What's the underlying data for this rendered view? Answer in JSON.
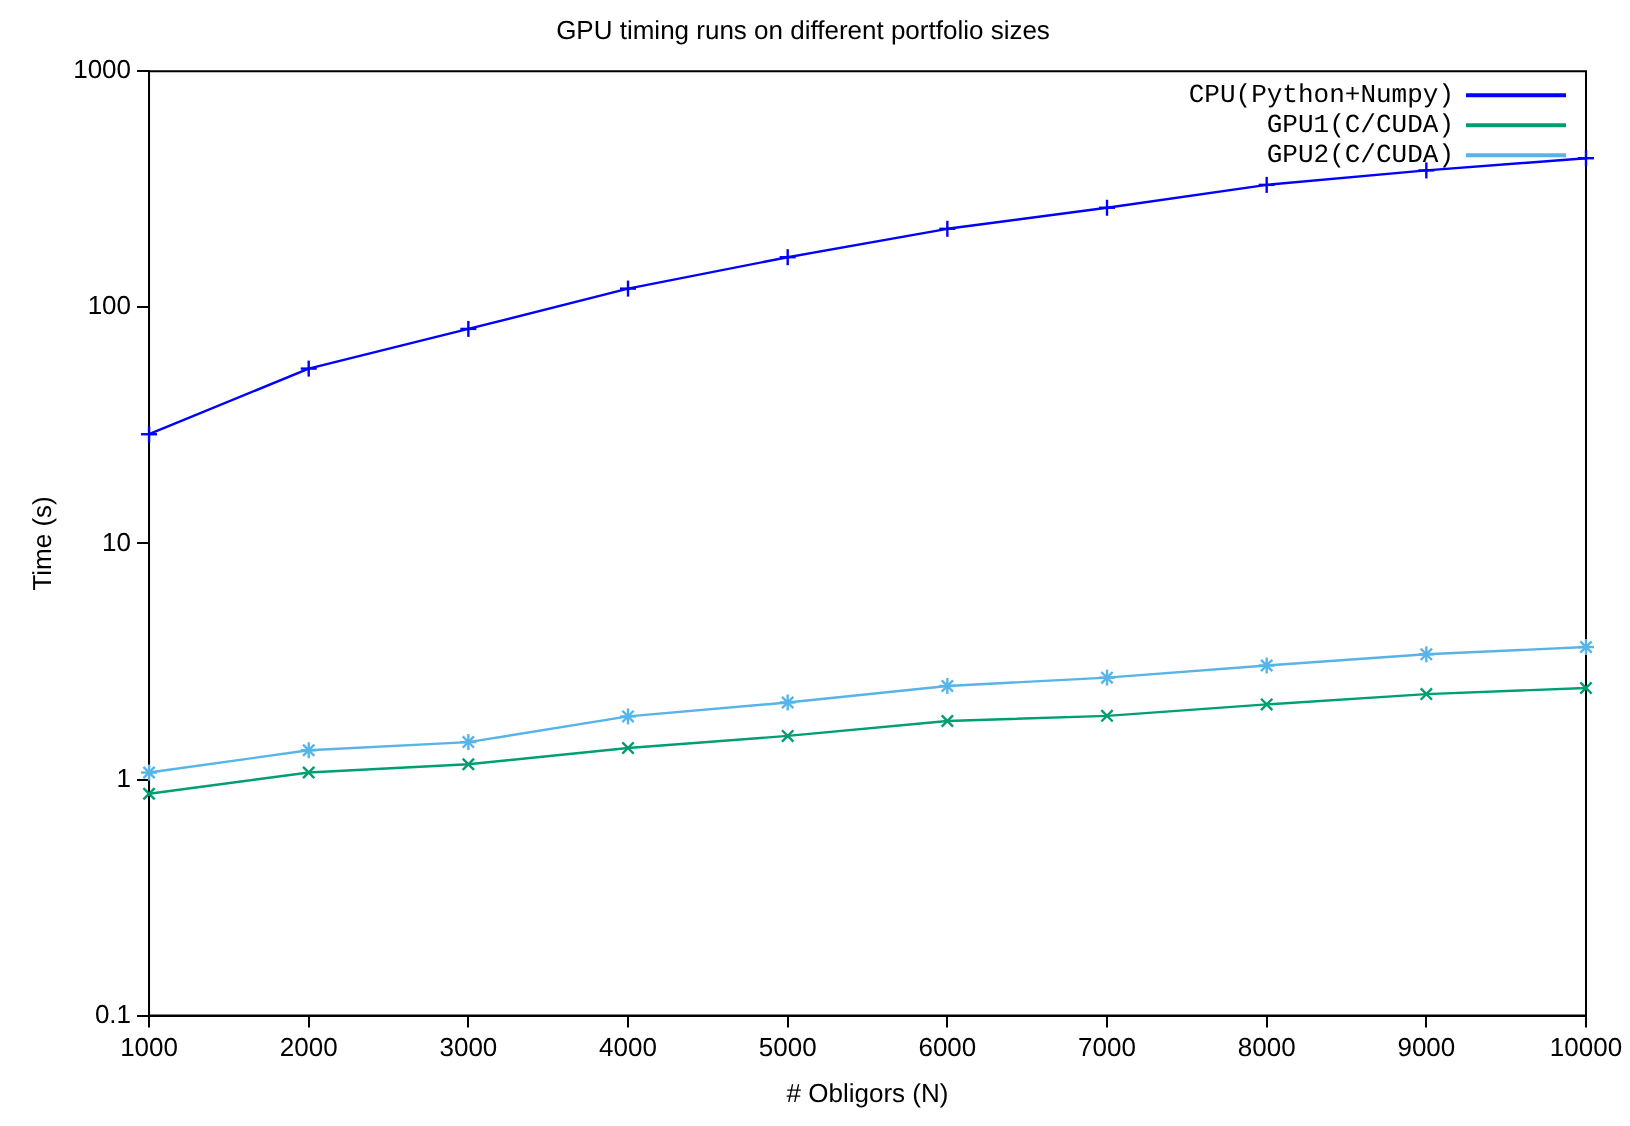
{
  "chart_data": {
    "type": "line",
    "title": "GPU timing runs on different portfolio sizes",
    "xlabel": "# Obligors (N)",
    "ylabel": "Time (s)",
    "x": [
      1000,
      2000,
      3000,
      4000,
      5000,
      6000,
      7000,
      8000,
      9000,
      10000
    ],
    "series": [
      {
        "name": "CPU(Python+Numpy)",
        "color": "#0000ff",
        "marker": "cross",
        "values": [
          29,
          55,
          81,
          120,
          163,
          215,
          264,
          330,
          380,
          428
        ]
      },
      {
        "name": "GPU1(C/CUDA)",
        "color": "#009e73",
        "marker": "cross",
        "values": [
          0.87,
          1.07,
          1.16,
          1.36,
          1.53,
          1.77,
          1.86,
          2.08,
          2.3,
          2.44
        ]
      },
      {
        "name": "GPU2(C/CUDA)",
        "color": "#56b4e9",
        "marker": "cross",
        "values": [
          1.07,
          1.33,
          1.44,
          1.85,
          2.12,
          2.49,
          2.7,
          3.04,
          3.39,
          3.64
        ]
      }
    ],
    "log": "y",
    "xlim": [
      1000,
      10000
    ],
    "xticks": [
      1000,
      2000,
      3000,
      4000,
      5000,
      6000,
      7000,
      8000,
      9000,
      10000
    ],
    "ylim": [
      0.1,
      1000
    ],
    "yticks": [
      0.1,
      1,
      10,
      100,
      1000
    ],
    "grid": false,
    "legend": "top right",
    "line_style": "solid"
  }
}
